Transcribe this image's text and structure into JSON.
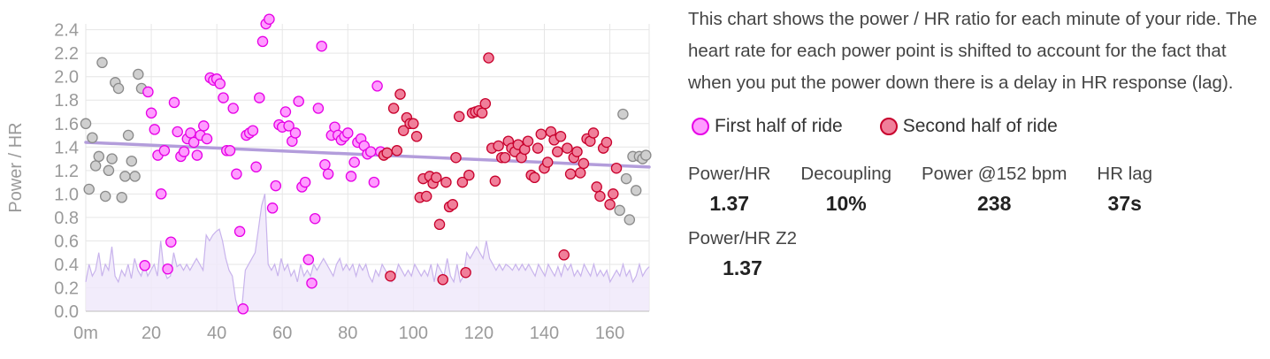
{
  "description": "This chart shows the power / HR ratio for each minute of your ride. The heart rate for each power point is shifted to account for the fact that when you put the power down there is a delay in HR response (lag).",
  "legend": {
    "first": {
      "label": "First half of ride",
      "fill": "#ff9cff",
      "stroke": "#e600e6"
    },
    "second": {
      "label": "Second half of ride",
      "fill": "#f07f9a",
      "stroke": "#c8002c"
    }
  },
  "stats": [
    {
      "label": "Power/HR",
      "value": "1.37"
    },
    {
      "label": "Decoupling",
      "value": "10%"
    },
    {
      "label": "Power @152 bpm",
      "value": "238"
    },
    {
      "label": "HR lag",
      "value": "37s"
    },
    {
      "label": "Power/HR Z2",
      "value": "1.37"
    }
  ],
  "chart_data": {
    "type": "scatter",
    "ylabel": "Power / HR",
    "x_tick_labels": [
      "0m",
      "20",
      "40",
      "60",
      "80",
      "100",
      "120",
      "140",
      "160"
    ],
    "x_ticks": [
      0,
      20,
      40,
      60,
      80,
      100,
      120,
      140,
      160
    ],
    "y_tick_labels": [
      "0.0",
      "0.2",
      "0.4",
      "0.6",
      "0.8",
      "1.0",
      "1.2",
      "1.4",
      "1.6",
      "1.8",
      "2.0",
      "2.2",
      "2.4"
    ],
    "y_ticks": [
      0,
      0.2,
      0.4,
      0.6,
      0.8,
      1.0,
      1.2,
      1.4,
      1.6,
      1.8,
      2.0,
      2.2,
      2.4
    ],
    "xlim": [
      0,
      172
    ],
    "ylim": [
      0,
      2.45
    ],
    "grid": true,
    "trend_line": {
      "x": [
        0,
        172
      ],
      "y": [
        1.44,
        1.23
      ],
      "color": "#b39ddb"
    },
    "series": [
      {
        "role": "excluded",
        "fill": "#cfcfcf",
        "stroke": "#8a8a8a",
        "points": [
          [
            0,
            1.6
          ],
          [
            1,
            1.04
          ],
          [
            2,
            1.48
          ],
          [
            3,
            1.24
          ],
          [
            4,
            1.32
          ],
          [
            5,
            2.12
          ],
          [
            6,
            0.98
          ],
          [
            7,
            1.2
          ],
          [
            8,
            1.3
          ],
          [
            9,
            1.95
          ],
          [
            10,
            1.9
          ],
          [
            11,
            0.97
          ],
          [
            12,
            1.15
          ],
          [
            13,
            1.5
          ],
          [
            14,
            1.28
          ],
          [
            15,
            1.15
          ],
          [
            16,
            2.02
          ],
          [
            17,
            1.9
          ],
          [
            163,
            0.86
          ],
          [
            164,
            1.68
          ],
          [
            165,
            1.13
          ],
          [
            166,
            0.78
          ],
          [
            167,
            1.32
          ],
          [
            168,
            1.03
          ],
          [
            169,
            1.32
          ],
          [
            170,
            1.3
          ],
          [
            171,
            1.33
          ]
        ]
      },
      {
        "role": "first",
        "fill": "#ff9cff",
        "stroke": "#e600e6",
        "points": [
          [
            18,
            0.39
          ],
          [
            19,
            1.87
          ],
          [
            20,
            1.69
          ],
          [
            21,
            1.55
          ],
          [
            22,
            1.33
          ],
          [
            23,
            1.0
          ],
          [
            24,
            1.37
          ],
          [
            25,
            0.36
          ],
          [
            26,
            0.59
          ],
          [
            27,
            1.78
          ],
          [
            28,
            1.53
          ],
          [
            29,
            1.32
          ],
          [
            30,
            1.36
          ],
          [
            31,
            1.47
          ],
          [
            32,
            1.52
          ],
          [
            33,
            1.44
          ],
          [
            34,
            1.33
          ],
          [
            35,
            1.5
          ],
          [
            36,
            1.58
          ],
          [
            37,
            1.47
          ],
          [
            38,
            1.99
          ],
          [
            39,
            1.97
          ],
          [
            40,
            1.98
          ],
          [
            41,
            1.94
          ],
          [
            42,
            1.82
          ],
          [
            43,
            1.37
          ],
          [
            44,
            1.37
          ],
          [
            45,
            1.73
          ],
          [
            46,
            1.17
          ],
          [
            47,
            0.68
          ],
          [
            48,
            0.02
          ],
          [
            49,
            1.5
          ],
          [
            50,
            1.52
          ],
          [
            51,
            1.54
          ],
          [
            52,
            1.23
          ],
          [
            53,
            1.82
          ],
          [
            54,
            2.3
          ],
          [
            55,
            2.45
          ],
          [
            56,
            2.49
          ],
          [
            57,
            0.88
          ],
          [
            58,
            1.07
          ],
          [
            59,
            1.59
          ],
          [
            60,
            1.57
          ],
          [
            61,
            1.7
          ],
          [
            62,
            1.58
          ],
          [
            63,
            1.45
          ],
          [
            64,
            1.52
          ],
          [
            65,
            1.79
          ],
          [
            66,
            1.06
          ],
          [
            67,
            1.1
          ],
          [
            68,
            0.44
          ],
          [
            69,
            0.24
          ],
          [
            70,
            0.79
          ],
          [
            71,
            1.73
          ],
          [
            72,
            2.26
          ],
          [
            73,
            1.25
          ],
          [
            74,
            1.17
          ],
          [
            75,
            1.5
          ],
          [
            76,
            1.57
          ],
          [
            77,
            1.5
          ],
          [
            78,
            1.46
          ],
          [
            79,
            1.49
          ],
          [
            80,
            1.52
          ],
          [
            81,
            1.15
          ],
          [
            82,
            1.27
          ],
          [
            83,
            1.44
          ],
          [
            84,
            1.47
          ],
          [
            85,
            1.41
          ],
          [
            86,
            1.34
          ],
          [
            87,
            1.36
          ],
          [
            88,
            1.1
          ],
          [
            89,
            1.92
          ],
          [
            90,
            1.36
          ]
        ]
      },
      {
        "role": "second",
        "fill": "#f07f9a",
        "stroke": "#c8002c",
        "points": [
          [
            91,
            1.33
          ],
          [
            92,
            1.35
          ],
          [
            93,
            0.3
          ],
          [
            94,
            1.73
          ],
          [
            95,
            1.37
          ],
          [
            96,
            1.85
          ],
          [
            97,
            1.54
          ],
          [
            98,
            1.65
          ],
          [
            99,
            1.6
          ],
          [
            100,
            1.6
          ],
          [
            101,
            1.49
          ],
          [
            102,
            0.97
          ],
          [
            103,
            1.13
          ],
          [
            104,
            0.98
          ],
          [
            105,
            1.15
          ],
          [
            106,
            1.09
          ],
          [
            107,
            1.14
          ],
          [
            108,
            0.74
          ],
          [
            109,
            0.27
          ],
          [
            110,
            1.1
          ],
          [
            111,
            0.89
          ],
          [
            112,
            0.91
          ],
          [
            113,
            1.31
          ],
          [
            114,
            1.66
          ],
          [
            115,
            1.1
          ],
          [
            116,
            0.33
          ],
          [
            117,
            1.16
          ],
          [
            118,
            1.69
          ],
          [
            119,
            1.7
          ],
          [
            120,
            1.71
          ],
          [
            121,
            1.69
          ],
          [
            122,
            1.77
          ],
          [
            123,
            2.16
          ],
          [
            124,
            1.39
          ],
          [
            125,
            1.11
          ],
          [
            126,
            1.41
          ],
          [
            127,
            1.31
          ],
          [
            128,
            1.31
          ],
          [
            129,
            1.45
          ],
          [
            130,
            1.39
          ],
          [
            131,
            1.36
          ],
          [
            132,
            1.42
          ],
          [
            133,
            1.31
          ],
          [
            134,
            1.38
          ],
          [
            135,
            1.45
          ],
          [
            136,
            1.16
          ],
          [
            137,
            1.14
          ],
          [
            138,
            1.39
          ],
          [
            139,
            1.51
          ],
          [
            140,
            1.22
          ],
          [
            141,
            1.27
          ],
          [
            142,
            1.53
          ],
          [
            143,
            1.46
          ],
          [
            144,
            1.36
          ],
          [
            145,
            1.49
          ],
          [
            146,
            0.48
          ],
          [
            147,
            1.39
          ],
          [
            148,
            1.17
          ],
          [
            149,
            1.31
          ],
          [
            150,
            1.36
          ],
          [
            151,
            1.18
          ],
          [
            152,
            1.26
          ],
          [
            153,
            1.47
          ],
          [
            154,
            1.45
          ],
          [
            155,
            1.52
          ],
          [
            156,
            1.06
          ],
          [
            157,
            0.98
          ],
          [
            158,
            1.39
          ],
          [
            159,
            1.44
          ],
          [
            160,
            0.91
          ],
          [
            161,
            1.0
          ],
          [
            162,
            1.22
          ]
        ]
      }
    ],
    "background_area": {
      "fill": "#efe7fa",
      "stroke": "#c8b3ec",
      "values": [
        0.25,
        0.4,
        0.3,
        0.35,
        0.5,
        0.3,
        0.4,
        0.35,
        0.55,
        0.3,
        0.25,
        0.35,
        0.3,
        0.4,
        0.28,
        0.45,
        0.35,
        0.3,
        0.4,
        0.3,
        0.35,
        0.4,
        0.3,
        0.6,
        0.35,
        0.28,
        0.3,
        0.5,
        0.38,
        0.4,
        0.35,
        0.4,
        0.35,
        0.4,
        0.45,
        0.4,
        0.35,
        0.65,
        0.6,
        0.65,
        0.68,
        0.7,
        0.6,
        0.45,
        0.35,
        0.3,
        0.1,
        0.0,
        0.05,
        0.35,
        0.4,
        0.45,
        0.5,
        0.7,
        0.9,
        1.0,
        0.4,
        0.35,
        0.4,
        0.3,
        0.45,
        0.35,
        0.4,
        0.3,
        0.35,
        0.25,
        0.4,
        0.3,
        0.35,
        0.3,
        0.4,
        0.35,
        0.4,
        0.45,
        0.4,
        0.35,
        0.3,
        0.4,
        0.45,
        0.35,
        0.4,
        0.35,
        0.4,
        0.3,
        0.4,
        0.35,
        0.4,
        0.3,
        0.25,
        0.35,
        0.3,
        0.4,
        0.35,
        0.3,
        0.25,
        0.3,
        0.4,
        0.35,
        0.3,
        0.35,
        0.3,
        0.4,
        0.35,
        0.3,
        0.35,
        0.3,
        0.4,
        0.25,
        0.4,
        0.35,
        0.3,
        0.45,
        0.3,
        0.25,
        0.4,
        0.25,
        0.3,
        0.5,
        0.45,
        0.5,
        0.55,
        0.5,
        0.45,
        0.6,
        0.45,
        0.4,
        0.35,
        0.4,
        0.35,
        0.4,
        0.38,
        0.35,
        0.4,
        0.35,
        0.4,
        0.35,
        0.4,
        0.35,
        0.3,
        0.4,
        0.35,
        0.3,
        0.4,
        0.35,
        0.3,
        0.38,
        0.3,
        0.4,
        0.35,
        0.4,
        0.3,
        0.35,
        0.3,
        0.4,
        0.35,
        0.3,
        0.4,
        0.3,
        0.35,
        0.3,
        0.35,
        0.25,
        0.3,
        0.35,
        0.3,
        0.4,
        0.3,
        0.35,
        0.25,
        0.3,
        0.4,
        0.3,
        0.35,
        0.38
      ]
    }
  }
}
